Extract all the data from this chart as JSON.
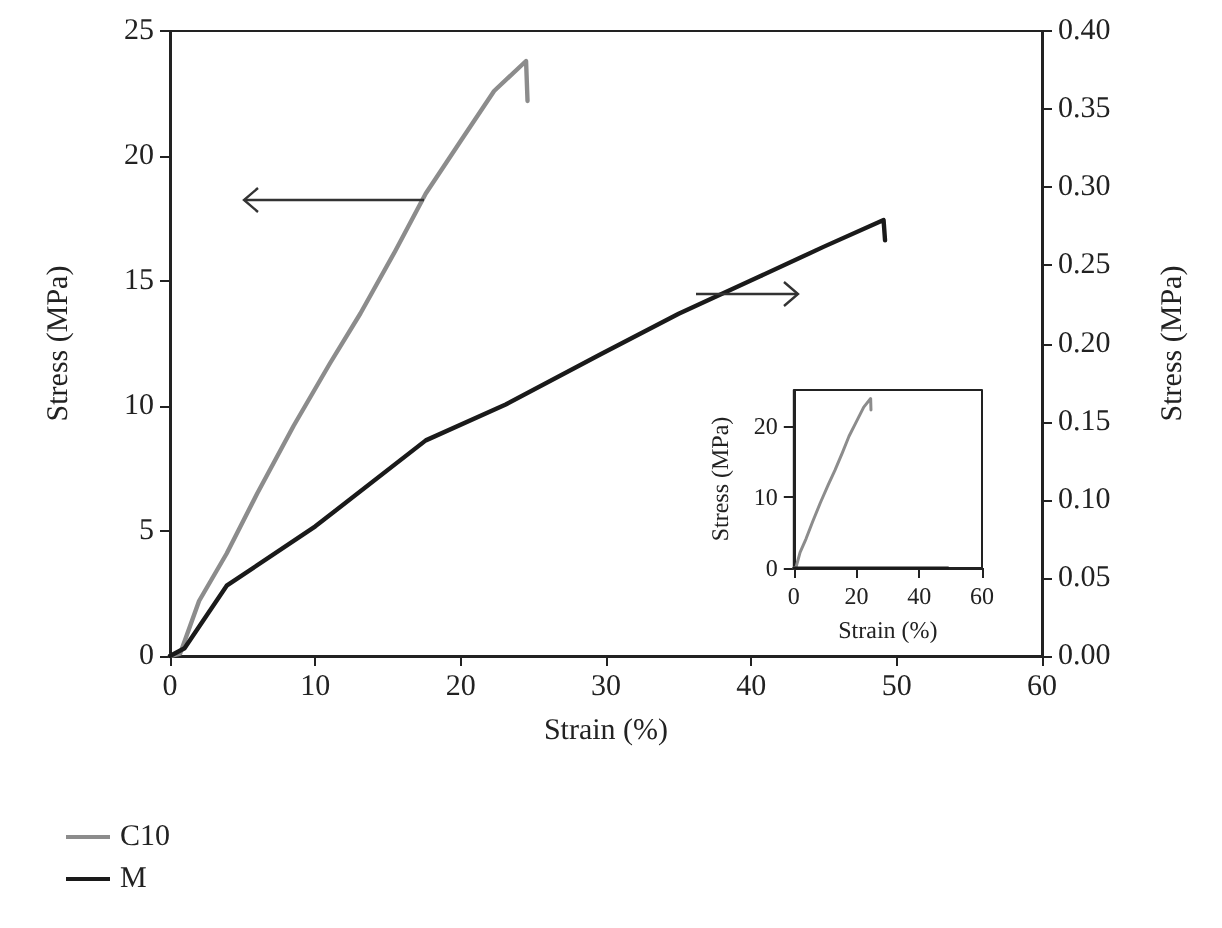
{
  "chart_data": [
    {
      "type": "line",
      "xlabel": "Strain (%)",
      "ylabel": "Stress (MPa)",
      "y2label": "Stress (MPa)",
      "xlim": [
        0,
        60
      ],
      "xticks": [
        0,
        10,
        20,
        30,
        40,
        50,
        60
      ],
      "ylim": [
        0,
        25
      ],
      "yticks": [
        0,
        5,
        10,
        15,
        20,
        25
      ],
      "y2lim": [
        0,
        0.4
      ],
      "y2ticks": [
        {
          "value": 0,
          "label": "0.00"
        },
        {
          "value": 0.05,
          "label": "0.05"
        },
        {
          "value": 0.1,
          "label": "0.10"
        },
        {
          "value": 0.15,
          "label": "0.15"
        },
        {
          "value": 0.2,
          "label": "0.20"
        },
        {
          "value": 0.25,
          "label": "0.25"
        },
        {
          "value": 0.3,
          "label": "0.30"
        },
        {
          "value": 0.35,
          "label": "0.35"
        },
        {
          "value": 0.4,
          "label": "0.40"
        }
      ],
      "legend": "bottom left",
      "series": [
        {
          "name": "C10",
          "color": "#8c8c8c",
          "x": [
            0,
            0.7,
            2,
            3.9,
            6,
            8.5,
            11,
            13.1,
            15.5,
            17.6,
            20,
            22.3,
            24.5,
            24.6
          ],
          "values": [
            0,
            0.1,
            2.2,
            4.1,
            6.5,
            9.2,
            11.7,
            13.7,
            16.2,
            18.5,
            20.6,
            22.6,
            23.8,
            22.2
          ]
        },
        {
          "name": "M",
          "color": "#1a1a1a",
          "axis": "y2",
          "x": [
            0,
            1,
            3.9,
            10,
            17.6,
            23.1,
            29.6,
            35,
            40.6,
            45,
            49.1,
            49.2
          ],
          "values": [
            0,
            0.005,
            0.045,
            0.083,
            0.138,
            0.161,
            0.193,
            0.219,
            0.243,
            0.262,
            0.279,
            0.266
          ]
        }
      ]
    },
    {
      "type": "line",
      "xlabel": "Strain (%)",
      "ylabel": "Stress (MPa)",
      "xlim": [
        0,
        60
      ],
      "xticks": [
        0,
        20,
        40,
        60
      ],
      "ylim": [
        0,
        25
      ],
      "yticks": [
        0,
        10,
        20
      ],
      "series": [
        {
          "color": "#8c8c8c",
          "x": [
            0,
            0.7,
            2,
            3.9,
            6,
            8.5,
            11,
            13.1,
            15.5,
            17.6,
            20,
            22.3,
            24.5,
            24.6
          ],
          "values": [
            0,
            0.1,
            2.2,
            4.1,
            6.5,
            9.2,
            11.7,
            13.7,
            16.2,
            18.5,
            20.6,
            22.6,
            23.8,
            22.2
          ]
        },
        {
          "color": "#1a1a1a",
          "x": [
            0,
            10,
            20,
            30,
            40,
            49.2
          ],
          "values": [
            0,
            0,
            0,
            0,
            0,
            0
          ]
        }
      ]
    }
  ]
}
